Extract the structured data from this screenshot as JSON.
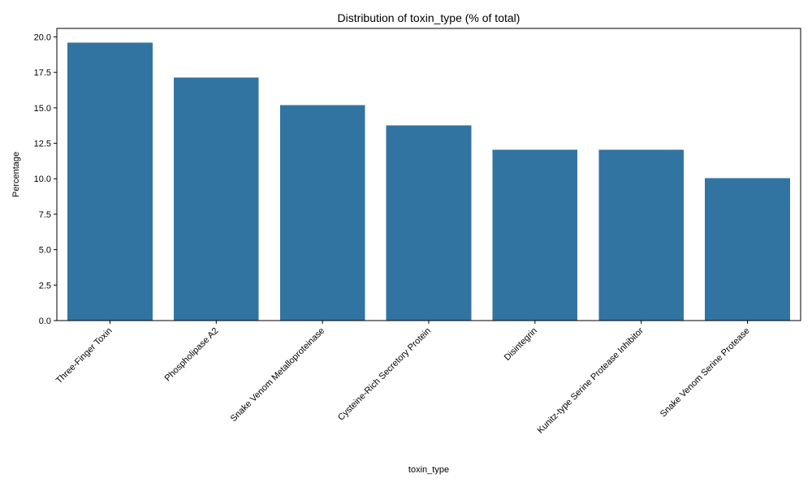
{
  "chart_data": {
    "type": "bar",
    "title": "Distribution of toxin_type (% of total)",
    "xlabel": "toxin_type",
    "ylabel": "Percentage",
    "categories": [
      "Three-Finger Toxin",
      "Phospholipase A2",
      "Snake Venom Metalloproteinase",
      "Cysteine-Rich Secretory Protein",
      "Disintegrin",
      "Kunitz-type Serine Protease Inhibitor",
      "Snake Venom Serine Protease"
    ],
    "values": [
      19.6,
      17.15,
      15.2,
      13.75,
      12.05,
      12.05,
      10.05
    ],
    "ylim": [
      0,
      20.6
    ],
    "yticks": [
      "0.0",
      "2.5",
      "5.0",
      "7.5",
      "10.0",
      "12.5",
      "15.0",
      "17.5",
      "20.0"
    ],
    "grid": false,
    "bar_color": "#3274a1"
  }
}
